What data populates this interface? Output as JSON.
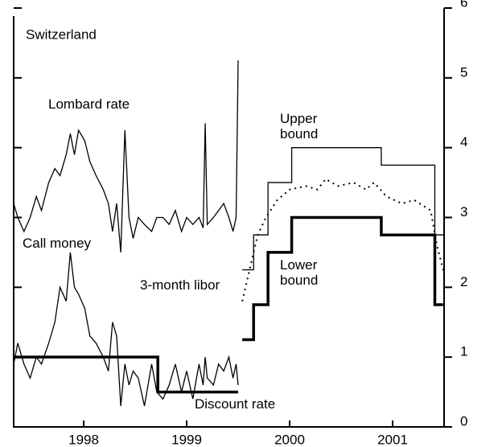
{
  "chart_data": {
    "type": "line",
    "title": "Switzerland",
    "xlim": [
      1997.82,
      2002.0
    ],
    "ylim": [
      0,
      6
    ],
    "yticks": [
      0,
      1,
      2,
      3,
      4,
      5,
      6
    ],
    "xticks": [
      {
        "value": 1998.5,
        "label": "1998"
      },
      {
        "value": 1999.5,
        "label": "1999"
      },
      {
        "value": 2000.5,
        "label": "2000"
      },
      {
        "value": 2001.5,
        "label": "2001"
      }
    ],
    "series": [
      {
        "name": "Lombard rate",
        "color": "#000",
        "style": "thin",
        "x": [
          1997.82,
          1997.86,
          1997.92,
          1997.98,
          1998.04,
          1998.09,
          1998.16,
          1998.22,
          1998.27,
          1998.33,
          1998.37,
          1998.41,
          1998.45,
          1998.51,
          1998.56,
          1998.62,
          1998.69,
          1998.74,
          1998.78,
          1998.82,
          1998.86,
          1998.9,
          1998.94,
          1998.98,
          1999.03,
          1999.09,
          1999.16,
          1999.21,
          1999.27,
          1999.33,
          1999.39,
          1999.45,
          1999.5,
          1999.56,
          1999.62,
          1999.66,
          1999.68,
          1999.7,
          1999.76,
          1999.81,
          1999.86,
          1999.91,
          1999.95,
          1999.98,
          2000.0
        ],
        "values": [
          3.2,
          3.0,
          2.8,
          3.0,
          3.3,
          3.1,
          3.5,
          3.7,
          3.6,
          3.9,
          4.2,
          3.9,
          4.25,
          4.1,
          3.8,
          3.6,
          3.4,
          3.2,
          2.8,
          3.2,
          2.5,
          4.25,
          3.0,
          2.7,
          3.0,
          2.9,
          2.8,
          3.0,
          3.0,
          2.9,
          3.1,
          2.8,
          3.0,
          2.9,
          3.0,
          2.85,
          4.35,
          2.9,
          3.0,
          3.1,
          3.2,
          3.0,
          2.8,
          3.0,
          5.25
        ]
      },
      {
        "name": "Call money",
        "color": "#000",
        "style": "thin",
        "x": [
          1997.82,
          1997.86,
          1997.92,
          1997.98,
          1998.04,
          1998.09,
          1998.16,
          1998.22,
          1998.27,
          1998.33,
          1998.37,
          1998.41,
          1998.45,
          1998.51,
          1998.56,
          1998.62,
          1998.69,
          1998.74,
          1998.78,
          1998.82,
          1998.86,
          1998.9,
          1998.94,
          1998.98,
          1999.03,
          1999.09,
          1999.16,
          1999.21,
          1999.27,
          1999.33,
          1999.39,
          1999.45,
          1999.5,
          1999.56,
          1999.62,
          1999.66,
          1999.68,
          1999.7,
          1999.76,
          1999.81,
          1999.86,
          1999.91,
          1999.95,
          1999.98,
          2000.0
        ],
        "values": [
          0.9,
          1.2,
          0.9,
          0.7,
          1.0,
          0.9,
          1.2,
          1.5,
          2.0,
          1.8,
          2.5,
          2.0,
          1.9,
          1.7,
          1.3,
          1.2,
          1.0,
          0.8,
          1.5,
          1.3,
          0.3,
          0.9,
          0.6,
          0.8,
          0.7,
          0.3,
          0.9,
          0.5,
          0.4,
          0.6,
          0.9,
          0.5,
          0.8,
          0.4,
          0.9,
          0.6,
          1.0,
          0.7,
          0.6,
          0.9,
          0.8,
          1.0,
          0.7,
          0.9,
          0.6
        ]
      },
      {
        "name": "Discount rate",
        "color": "#000",
        "style": "thick",
        "x": [
          1997.82,
          1999.22,
          1999.22,
          2000.0
        ],
        "values": [
          1,
          1,
          0.5,
          0.5
        ]
      },
      {
        "name": "3-month libor",
        "color": "#000",
        "style": "dotted",
        "x": [
          2000.04,
          2000.19,
          2000.27,
          2000.38,
          2000.5,
          2000.66,
          2000.77,
          2000.85,
          2000.97,
          2001.12,
          2001.24,
          2001.32,
          2001.44,
          2001.59,
          2001.71,
          2001.87,
          2001.93,
          2002.0
        ],
        "values": [
          1.8,
          2.75,
          3.0,
          3.25,
          3.4,
          3.45,
          3.4,
          3.55,
          3.45,
          3.5,
          3.4,
          3.5,
          3.3,
          3.2,
          3.25,
          3.1,
          2.6,
          2.2
        ]
      },
      {
        "name": "Upper bound",
        "color": "#000",
        "style": "thin",
        "x": [
          2000.04,
          2000.15,
          2000.15,
          2000.29,
          2000.29,
          2000.52,
          2000.52,
          2001.39,
          2001.39,
          2001.91,
          2001.91,
          2002.0
        ],
        "values": [
          2.25,
          2.25,
          2.75,
          2.75,
          3.5,
          3.5,
          4.0,
          4.0,
          3.75,
          3.75,
          2.75,
          2.75
        ]
      },
      {
        "name": "Lower bound",
        "color": "#000",
        "style": "thick",
        "x": [
          2000.04,
          2000.15,
          2000.15,
          2000.29,
          2000.29,
          2000.52,
          2000.52,
          2001.39,
          2001.39,
          2001.91,
          2001.91,
          2001.99
        ],
        "values": [
          1.25,
          1.25,
          1.75,
          1.75,
          2.5,
          2.5,
          3.0,
          3.0,
          2.75,
          2.75,
          1.75,
          1.75
        ]
      }
    ]
  }
}
